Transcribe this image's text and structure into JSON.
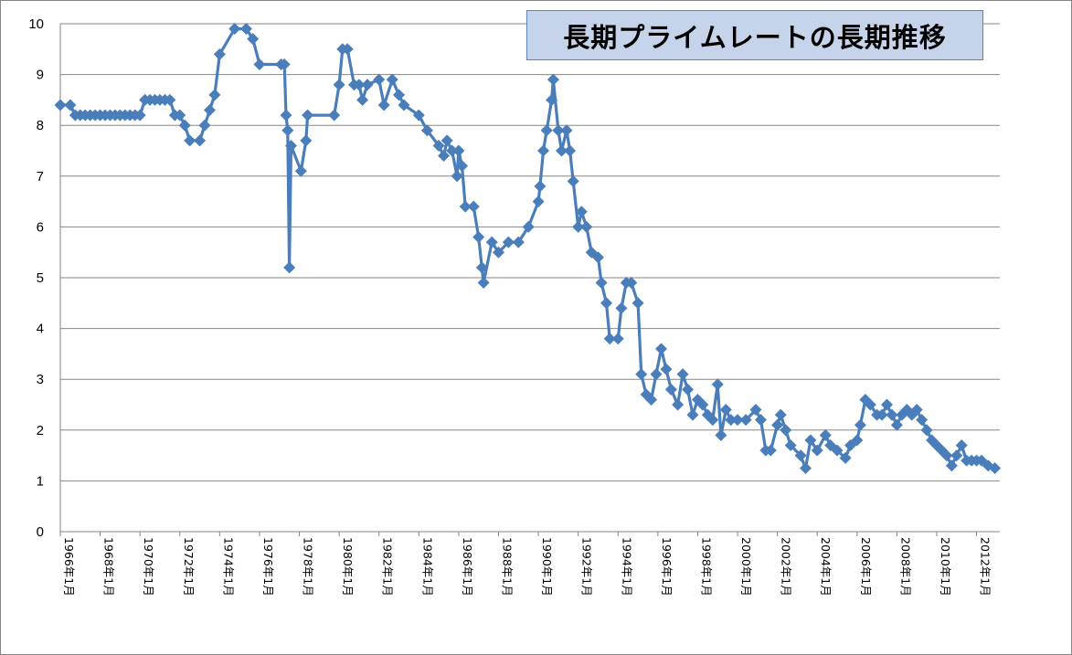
{
  "chart_data": {
    "type": "line",
    "title": "長期プライムレートの長期推移",
    "xlabel": "",
    "ylabel": "",
    "ylim": [
      0,
      10
    ],
    "yticks": [
      "0",
      "1",
      "2",
      "3",
      "4",
      "5",
      "6",
      "7",
      "8",
      "9",
      "10"
    ],
    "xlim": [
      "1966-01",
      "2013-03"
    ],
    "xtick_labels": [
      "1966年1月",
      "1968年1月",
      "1970年1月",
      "1972年1月",
      "1974年1月",
      "1976年1月",
      "1978年1月",
      "1980年1月",
      "1982年1月",
      "1984年1月",
      "1986年1月",
      "1988年1月",
      "1990年1月",
      "1992年1月",
      "1994年1月",
      "1996年1月",
      "1998年1月",
      "2000年1月",
      "2002年1月",
      "2004年1月",
      "2006年1月",
      "2008年1月",
      "2010年1月",
      "2012年1月"
    ],
    "grid": true,
    "legend": "none",
    "series_color": "#4a7ebb",
    "series": [
      {
        "points": [
          [
            "1966-01",
            8.4
          ],
          [
            "1966-07",
            8.4
          ],
          [
            "1966-10",
            8.2
          ],
          [
            "1967-01",
            8.2
          ],
          [
            "1967-04",
            8.2
          ],
          [
            "1967-07",
            8.2
          ],
          [
            "1967-10",
            8.2
          ],
          [
            "1968-01",
            8.2
          ],
          [
            "1968-04",
            8.2
          ],
          [
            "1968-07",
            8.2
          ],
          [
            "1968-10",
            8.2
          ],
          [
            "1969-01",
            8.2
          ],
          [
            "1969-04",
            8.2
          ],
          [
            "1969-07",
            8.2
          ],
          [
            "1969-10",
            8.2
          ],
          [
            "1970-01",
            8.2
          ],
          [
            "1970-04",
            8.5
          ],
          [
            "1970-07",
            8.5
          ],
          [
            "1970-10",
            8.5
          ],
          [
            "1971-01",
            8.5
          ],
          [
            "1971-04",
            8.5
          ],
          [
            "1971-07",
            8.5
          ],
          [
            "1971-10",
            8.2
          ],
          [
            "1972-01",
            8.2
          ],
          [
            "1972-04",
            8.0
          ],
          [
            "1972-07",
            7.7
          ],
          [
            "1973-01",
            7.7
          ],
          [
            "1973-04",
            8.0
          ],
          [
            "1973-07",
            8.3
          ],
          [
            "1973-10",
            8.6
          ],
          [
            "1974-01",
            9.4
          ],
          [
            "1974-10",
            9.9
          ],
          [
            "1975-05",
            9.9
          ],
          [
            "1975-09",
            9.7
          ],
          [
            "1976-01",
            9.2
          ],
          [
            "1977-02",
            9.2
          ],
          [
            "1977-04",
            9.2
          ],
          [
            "1977-05",
            8.2
          ],
          [
            "1977-06",
            7.9
          ],
          [
            "1977-07",
            5.2
          ],
          [
            "1977-08",
            7.6
          ],
          [
            "1978-02",
            7.1
          ],
          [
            "1978-05",
            7.7
          ],
          [
            "1978-06",
            8.2
          ],
          [
            "1979-10",
            8.2
          ],
          [
            "1980-01",
            8.8
          ],
          [
            "1980-03",
            9.5
          ],
          [
            "1980-06",
            9.5
          ],
          [
            "1980-10",
            8.8
          ],
          [
            "1981-01",
            8.8
          ],
          [
            "1981-03",
            8.5
          ],
          [
            "1981-06",
            8.8
          ],
          [
            "1982-01",
            8.9
          ],
          [
            "1982-04",
            8.4
          ],
          [
            "1982-09",
            8.9
          ],
          [
            "1983-01",
            8.6
          ],
          [
            "1983-04",
            8.4
          ],
          [
            "1984-01",
            8.2
          ],
          [
            "1984-06",
            7.9
          ],
          [
            "1985-01",
            7.6
          ],
          [
            "1985-04",
            7.4
          ],
          [
            "1985-06",
            7.7
          ],
          [
            "1985-09",
            7.5
          ],
          [
            "1985-12",
            7.0
          ],
          [
            "1986-01",
            7.5
          ],
          [
            "1986-03",
            7.2
          ],
          [
            "1986-05",
            6.4
          ],
          [
            "1986-10",
            6.4
          ],
          [
            "1987-01",
            5.8
          ],
          [
            "1987-03",
            5.2
          ],
          [
            "1987-04",
            4.9
          ],
          [
            "1987-09",
            5.7
          ],
          [
            "1988-01",
            5.5
          ],
          [
            "1988-07",
            5.7
          ],
          [
            "1989-01",
            5.7
          ],
          [
            "1989-07",
            6.0
          ],
          [
            "1990-01",
            6.5
          ],
          [
            "1990-02",
            6.8
          ],
          [
            "1990-04",
            7.5
          ],
          [
            "1990-06",
            7.9
          ],
          [
            "1990-09",
            8.5
          ],
          [
            "1990-10",
            8.9
          ],
          [
            "1991-01",
            7.9
          ],
          [
            "1991-03",
            7.5
          ],
          [
            "1991-06",
            7.9
          ],
          [
            "1991-08",
            7.5
          ],
          [
            "1991-10",
            6.9
          ],
          [
            "1992-01",
            6.0
          ],
          [
            "1992-03",
            6.3
          ],
          [
            "1992-06",
            6.0
          ],
          [
            "1992-09",
            5.5
          ],
          [
            "1993-01",
            5.4
          ],
          [
            "1993-03",
            4.9
          ],
          [
            "1993-06",
            4.5
          ],
          [
            "1993-08",
            3.8
          ],
          [
            "1994-01",
            3.8
          ],
          [
            "1994-03",
            4.4
          ],
          [
            "1994-06",
            4.9
          ],
          [
            "1994-09",
            4.9
          ],
          [
            "1995-01",
            4.5
          ],
          [
            "1995-03",
            3.1
          ],
          [
            "1995-06",
            2.7
          ],
          [
            "1995-09",
            2.6
          ],
          [
            "1995-12",
            3.1
          ],
          [
            "1996-03",
            3.6
          ],
          [
            "1996-06",
            3.2
          ],
          [
            "1996-09",
            2.8
          ],
          [
            "1997-01",
            2.5
          ],
          [
            "1997-04",
            3.1
          ],
          [
            "1997-07",
            2.8
          ],
          [
            "1997-10",
            2.3
          ],
          [
            "1998-01",
            2.6
          ],
          [
            "1998-04",
            2.5
          ],
          [
            "1998-07",
            2.3
          ],
          [
            "1998-10",
            2.2
          ],
          [
            "1999-01",
            2.9
          ],
          [
            "1999-03",
            1.9
          ],
          [
            "1999-06",
            2.4
          ],
          [
            "1999-09",
            2.2
          ],
          [
            "2000-01",
            2.2
          ],
          [
            "2000-06",
            2.2
          ],
          [
            "2000-12",
            2.4
          ],
          [
            "2001-03",
            2.2
          ],
          [
            "2001-06",
            1.6
          ],
          [
            "2001-09",
            1.6
          ],
          [
            "2002-01",
            2.1
          ],
          [
            "2002-03",
            2.3
          ],
          [
            "2002-06",
            2.0
          ],
          [
            "2002-09",
            1.7
          ],
          [
            "2003-03",
            1.5
          ],
          [
            "2003-06",
            1.25
          ],
          [
            "2003-09",
            1.8
          ],
          [
            "2004-01",
            1.6
          ],
          [
            "2004-06",
            1.9
          ],
          [
            "2004-09",
            1.7
          ],
          [
            "2005-01",
            1.6
          ],
          [
            "2005-06",
            1.45
          ],
          [
            "2005-09",
            1.7
          ],
          [
            "2006-01",
            1.8
          ],
          [
            "2006-03",
            2.1
          ],
          [
            "2006-06",
            2.6
          ],
          [
            "2006-09",
            2.5
          ],
          [
            "2007-01",
            2.3
          ],
          [
            "2007-04",
            2.3
          ],
          [
            "2007-07",
            2.5
          ],
          [
            "2007-10",
            2.3
          ],
          [
            "2008-01",
            2.1
          ],
          [
            "2008-04",
            2.3
          ],
          [
            "2008-07",
            2.4
          ],
          [
            "2008-10",
            2.3
          ],
          [
            "2009-01",
            2.4
          ],
          [
            "2009-04",
            2.2
          ],
          [
            "2009-07",
            2.0
          ],
          [
            "2009-10",
            1.8
          ],
          [
            "2010-01",
            1.7
          ],
          [
            "2010-04",
            1.6
          ],
          [
            "2010-07",
            1.5
          ],
          [
            "2010-10",
            1.3
          ],
          [
            "2011-01",
            1.5
          ],
          [
            "2011-04",
            1.7
          ],
          [
            "2011-07",
            1.4
          ],
          [
            "2011-10",
            1.4
          ],
          [
            "2012-01",
            1.4
          ],
          [
            "2012-04",
            1.4
          ],
          [
            "2012-08",
            1.3
          ],
          [
            "2012-12",
            1.25
          ]
        ]
      }
    ]
  }
}
